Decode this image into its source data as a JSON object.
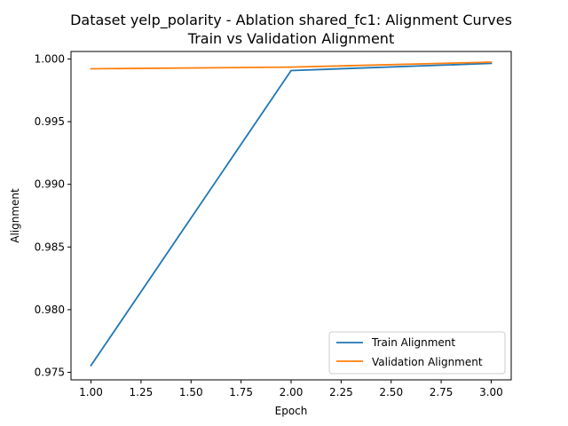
{
  "chart_data": {
    "type": "line",
    "title": "Dataset yelp_polarity - Ablation shared_fc1: Alignment Curves",
    "subtitle": "Train vs Validation Alignment",
    "xlabel": "Epoch",
    "ylabel": "Alignment",
    "x": [
      1.0,
      2.0,
      3.0
    ],
    "xlim": [
      0.9,
      3.1
    ],
    "ylim": [
      0.9744,
      1.0006
    ],
    "xticks": [
      "1.00",
      "1.25",
      "1.50",
      "1.75",
      "2.00",
      "2.25",
      "2.50",
      "2.75",
      "3.00"
    ],
    "yticks": [
      "0.975",
      "0.980",
      "0.985",
      "0.990",
      "0.995",
      "1.000"
    ],
    "grid": false,
    "legend_position": "lower right",
    "series": [
      {
        "name": "Train Alignment",
        "color": "#1f77b4",
        "values": [
          0.97555,
          0.99908,
          0.99965
        ]
      },
      {
        "name": "Validation Alignment",
        "color": "#ff7f0e",
        "values": [
          0.99922,
          0.99935,
          0.99975
        ]
      }
    ]
  }
}
